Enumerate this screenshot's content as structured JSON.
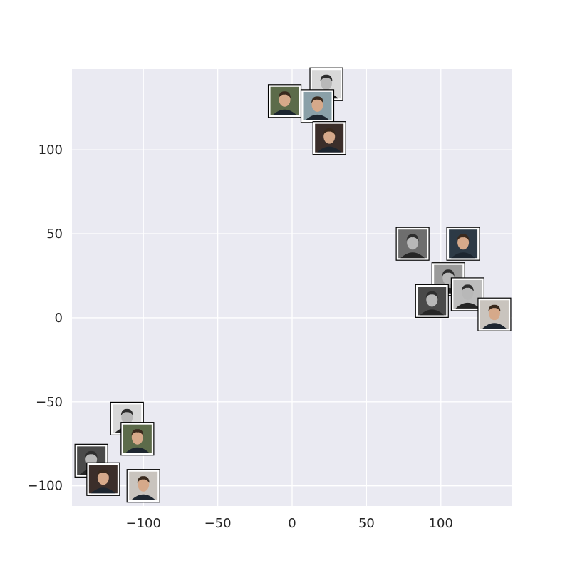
{
  "chart_data": {
    "type": "scatter",
    "xlim": [
      -148,
      148
    ],
    "ylim": [
      -112,
      148
    ],
    "xticks": [
      -100,
      -50,
      0,
      50,
      100
    ],
    "xtick_labels": [
      "−100",
      "−50",
      "0",
      "50",
      "100"
    ],
    "yticks": [
      -100,
      -50,
      0,
      50,
      100
    ],
    "ytick_labels": [
      "−100",
      "−50",
      "0",
      "50",
      "100"
    ],
    "grid": true,
    "marker": "face-thumbnail",
    "colors": {
      "background": "#eaeaf2",
      "grid": "#ffffff",
      "frame": "#000000"
    },
    "points": [
      {
        "x": 23,
        "y": 139,
        "tone": "grayscale"
      },
      {
        "x": -5,
        "y": 129,
        "tone": "color"
      },
      {
        "x": 17,
        "y": 126,
        "tone": "color"
      },
      {
        "x": 25,
        "y": 107,
        "tone": "color"
      },
      {
        "x": 81,
        "y": 44,
        "tone": "grayscale"
      },
      {
        "x": 115,
        "y": 44,
        "tone": "color"
      },
      {
        "x": 105,
        "y": 23,
        "tone": "grayscale"
      },
      {
        "x": 94,
        "y": 10,
        "tone": "grayscale"
      },
      {
        "x": 118,
        "y": 14,
        "tone": "grayscale"
      },
      {
        "x": 136,
        "y": 2,
        "tone": "color"
      },
      {
        "x": -111,
        "y": -60,
        "tone": "grayscale"
      },
      {
        "x": -104,
        "y": -72,
        "tone": "color"
      },
      {
        "x": -135,
        "y": -85,
        "tone": "grayscale"
      },
      {
        "x": -127,
        "y": -96,
        "tone": "color"
      },
      {
        "x": -100,
        "y": -100,
        "tone": "color"
      }
    ]
  }
}
